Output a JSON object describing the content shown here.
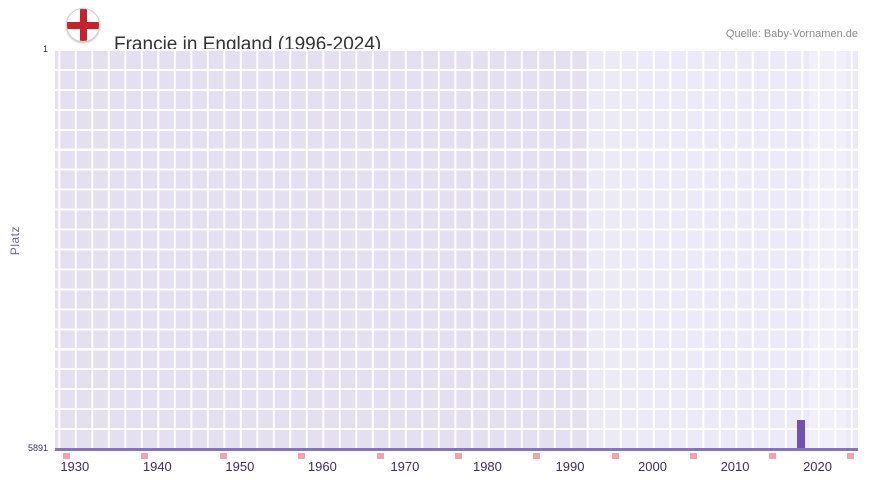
{
  "chart_data": {
    "type": "bar",
    "title": "Francie in England (1996-2024)",
    "source": "Quelle: Baby-Vornamen.de",
    "ylabel": "Platz",
    "y_axis": {
      "top_label": "1",
      "bottom_label": "5891",
      "min": 1,
      "max": 5891,
      "inverted": true
    },
    "x_axis": {
      "ticks": [
        1930,
        1940,
        1950,
        1960,
        1970,
        1980,
        1990,
        2000,
        2010,
        2020
      ],
      "range": [
        1927.6,
        2024.9
      ]
    },
    "series": [
      {
        "name": "Platz",
        "points": [
          {
            "year": 2018,
            "rank": 5480
          }
        ]
      }
    ],
    "baseline_marks_years": [
      1929,
      1938.5,
      1948,
      1957.5,
      1967,
      1976.5,
      1986,
      1995.5,
      2005,
      2014.5,
      2024
    ],
    "regions": [
      {
        "from": 1927.6,
        "to": 1992,
        "color": "#e4e0f0"
      },
      {
        "from": 1992,
        "to": 2024.9,
        "color": "#edeaf7"
      },
      {
        "from": 2019,
        "to": 2023.5,
        "color": "#f1effa"
      }
    ],
    "grid": true,
    "legend": "none",
    "colors": {
      "bar": "#7151ad",
      "grid_bg_outside": "#e4e0f0",
      "grid_bg_data_period": "#edeaf7",
      "grid_line": "#ffffff",
      "axis_line": "#8474bd",
      "tick_label": "#3e2d66",
      "baseline_mark": "#f2a2ac",
      "source_text": "#8b8b8b",
      "title_text": "#333333",
      "flag_red": "#c4232e"
    }
  }
}
